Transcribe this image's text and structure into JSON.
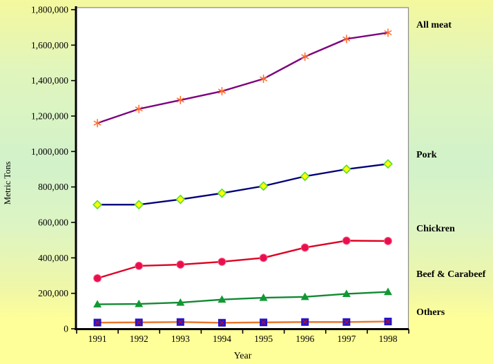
{
  "axes": {
    "y_title": "Metric Tons",
    "x_title": "Year"
  },
  "chart_data": {
    "type": "line",
    "title": "",
    "xlabel": "Year",
    "ylabel": "Metric Tons",
    "x": [
      "1991",
      "1992",
      "1993",
      "1994",
      "1995",
      "1996",
      "1997",
      "1998"
    ],
    "ylim": [
      0,
      1800000
    ],
    "y_tick_step": 200000,
    "y_tick_labels": [
      "0",
      "200,000",
      "400,000",
      "600,000",
      "800,000",
      "1,000,000",
      "1,200,000",
      "1,400,000",
      "1,600,000",
      "1,800,000"
    ],
    "grid": false,
    "legend_position": "right-outside",
    "plot_bg": "#ffffff",
    "series": [
      {
        "name": "All meat",
        "marker": "asterisk",
        "line_color": "#7d007d",
        "marker_color": "#ff6a2a",
        "values": [
          1160000,
          1240000,
          1290000,
          1340000,
          1410000,
          1535000,
          1635000,
          1670000
        ]
      },
      {
        "name": "Pork",
        "marker": "diamond",
        "line_color": "#000077",
        "marker_color": "#ffff00",
        "marker_edge": "#55dd33",
        "values": [
          700000,
          700000,
          730000,
          765000,
          805000,
          860000,
          900000,
          930000
        ]
      },
      {
        "name": "Chickren",
        "marker": "circle",
        "line_color": "#dd0022",
        "marker_color": "#e8104c",
        "values": [
          285000,
          355000,
          362000,
          378000,
          400000,
          458000,
          497000,
          495000
        ]
      },
      {
        "name": "Beef & Carabeef",
        "marker": "triangle",
        "line_color": "#118833",
        "marker_color": "#119933",
        "values": [
          138000,
          140000,
          148000,
          165000,
          175000,
          180000,
          197000,
          208000
        ]
      },
      {
        "name": "Others",
        "marker": "square-x",
        "line_color": "#e8762a",
        "marker_color": "#2214cc",
        "marker_edge": "#aa1133",
        "values": [
          35000,
          36000,
          38000,
          34000,
          36000,
          38000,
          38000,
          41000
        ]
      }
    ]
  }
}
